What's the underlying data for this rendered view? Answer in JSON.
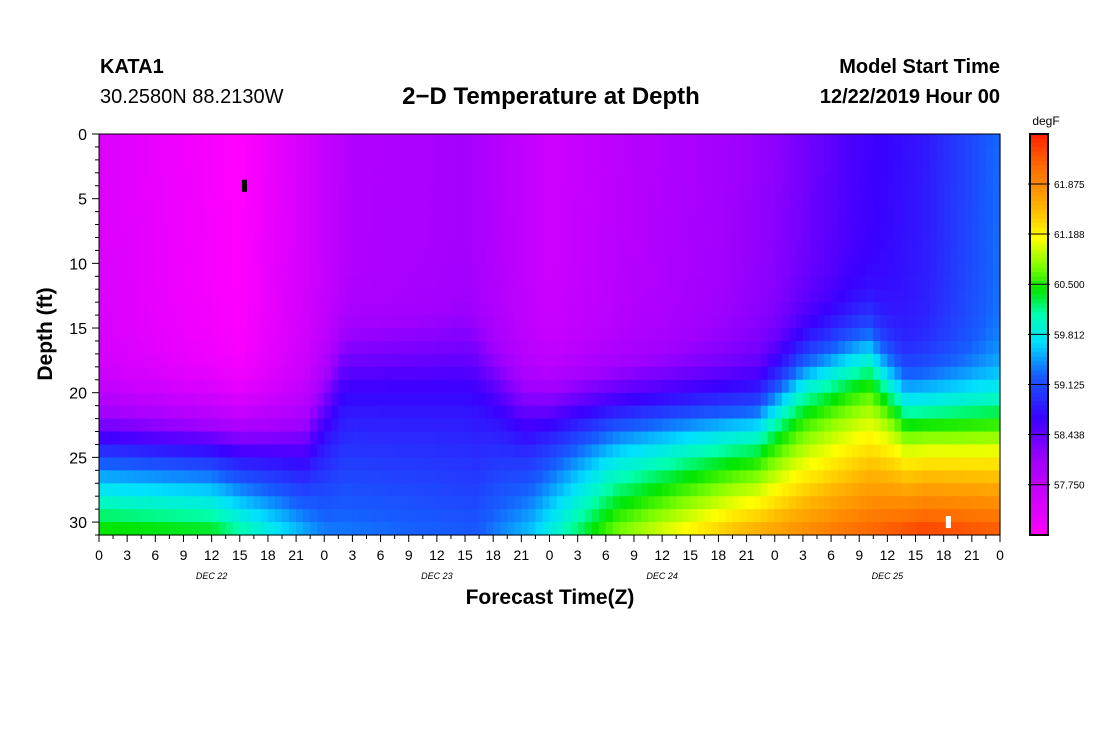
{
  "header": {
    "station_id": "KATA1",
    "coordinates": "30.2580N 88.2130W",
    "title": "2−D Temperature at Depth",
    "model_start_label": "Model Start Time",
    "model_start_value": "12/22/2019 Hour 00"
  },
  "chart_data": {
    "type": "heatmap",
    "title": "2−D Temperature at Depth",
    "xlabel": "Forecast Time(Z)",
    "ylabel": "Depth (ft)",
    "x_range_hours": [
      0,
      96
    ],
    "x_step_hours": 3,
    "x_tick_labels": [
      "0",
      "3",
      "6",
      "9",
      "12",
      "15",
      "18",
      "21",
      "0",
      "3",
      "6",
      "9",
      "12",
      "15",
      "18",
      "21",
      "0",
      "3",
      "6",
      "9",
      "12",
      "15",
      "18",
      "21",
      "0",
      "3",
      "6",
      "9",
      "12",
      "15",
      "18",
      "21",
      "0"
    ],
    "day_labels": [
      {
        "label": "DEC 22",
        "hour": 12
      },
      {
        "label": "DEC 23",
        "hour": 36
      },
      {
        "label": "DEC 24",
        "hour": 60
      },
      {
        "label": "DEC 25",
        "hour": 84
      }
    ],
    "y_range_ft": [
      0,
      31
    ],
    "y_ticks": [
      0,
      5,
      10,
      15,
      20,
      25,
      30
    ],
    "y_tick_labels": [
      "0",
      "5",
      "10",
      "15",
      "20",
      "25",
      "30"
    ],
    "colorbar": {
      "unit": "degF",
      "range": [
        57.06,
        62.56
      ],
      "tick_values": [
        57.75,
        58.438,
        59.125,
        59.812,
        60.5,
        61.188,
        61.875
      ],
      "tick_labels": [
        "57.750",
        "58.438",
        "59.125",
        "59.812",
        "60.500",
        "61.188",
        "61.875"
      ]
    },
    "markers": [
      {
        "name": "min-marker",
        "hour": 15.5,
        "depth": 4,
        "color": "#000000"
      },
      {
        "name": "max-marker",
        "hour": 90.5,
        "depth": 30,
        "color": "#ffffff"
      }
    ],
    "temperature_model": {
      "surface_day_cycle": [
        {
          "h": 0,
          "t": 57.45
        },
        {
          "h": 15,
          "t": 57.05
        },
        {
          "h": 27,
          "t": 57.9
        },
        {
          "h": 39,
          "t": 58.05
        },
        {
          "h": 48,
          "t": 57.6
        },
        {
          "h": 57,
          "t": 57.85
        },
        {
          "h": 72,
          "t": 58.2
        },
        {
          "h": 80,
          "t": 58.55
        },
        {
          "h": 88,
          "t": 58.8
        },
        {
          "h": 96,
          "t": 59.3
        }
      ],
      "thermocline_depth_ft": [
        {
          "h": 0,
          "d": 22.5
        },
        {
          "h": 22,
          "d": 22.5
        },
        {
          "h": 26,
          "d": 17
        },
        {
          "h": 40,
          "d": 17
        },
        {
          "h": 45,
          "d": 20.5
        },
        {
          "h": 70,
          "d": 21
        },
        {
          "h": 75,
          "d": 18
        },
        {
          "h": 82,
          "d": 16.5
        },
        {
          "h": 86,
          "d": 20.5
        },
        {
          "h": 96,
          "d": 21
        }
      ],
      "bottom_temp_degF": [
        {
          "h": 0,
          "t": 60.5
        },
        {
          "h": 12,
          "t": 60.4
        },
        {
          "h": 24,
          "t": 59.35
        },
        {
          "h": 40,
          "t": 59.2
        },
        {
          "h": 46,
          "t": 59.6
        },
        {
          "h": 55,
          "t": 60.7
        },
        {
          "h": 68,
          "t": 61.5
        },
        {
          "h": 78,
          "t": 61.95
        },
        {
          "h": 88,
          "t": 62.35
        },
        {
          "h": 96,
          "t": 62.2
        }
      ]
    }
  }
}
